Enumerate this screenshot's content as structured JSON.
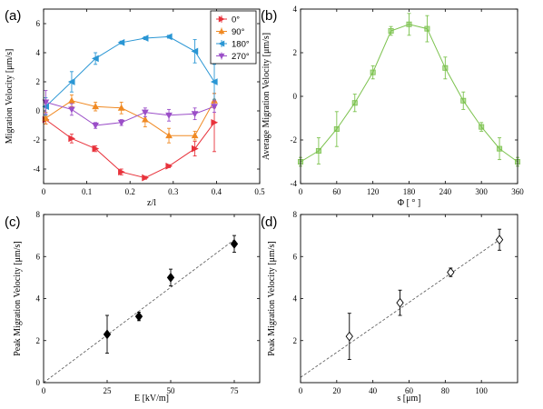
{
  "chart_data": [
    {
      "panel_label": "(a)",
      "type": "line",
      "xlabel": "z/l",
      "ylabel": "Migration Velocity [μm/s]",
      "xlim": [
        0,
        0.5
      ],
      "ylim": [
        -5,
        7
      ],
      "xticks": [
        0,
        0.1,
        0.2,
        0.3,
        0.4,
        0.5
      ],
      "xtick_labels": [
        "0",
        "0.1",
        "0.2",
        "0.3",
        "0.4",
        "0.5"
      ],
      "yticks": [
        -4,
        -2,
        0,
        2,
        4,
        6
      ],
      "ytick_labels": [
        "-4",
        "-2",
        "0",
        "2",
        "4",
        "6"
      ],
      "legend_position": "top-right",
      "series": [
        {
          "name": "0°",
          "color": "#e8333c",
          "marker": "triangle-right",
          "x": [
            0.005,
            0.065,
            0.12,
            0.18,
            0.235,
            0.29,
            0.35,
            0.395
          ],
          "y": [
            -0.6,
            -1.9,
            -2.6,
            -4.2,
            -4.6,
            -3.8,
            -2.6,
            -0.8
          ],
          "err": [
            0.3,
            0.3,
            0.2,
            0.2,
            0.1,
            0.1,
            0.5,
            2.0
          ]
        },
        {
          "name": "90°",
          "color": "#f08a24",
          "marker": "triangle-up",
          "x": [
            0.005,
            0.065,
            0.12,
            0.18,
            0.235,
            0.29,
            0.35,
            0.395
          ],
          "y": [
            -0.5,
            0.7,
            0.3,
            0.2,
            -0.6,
            -1.7,
            -1.7,
            0.7
          ],
          "err": [
            0.4,
            0.4,
            0.3,
            0.4,
            0.5,
            0.5,
            0.3,
            0.5
          ]
        },
        {
          "name": "180°",
          "color": "#2a96d4",
          "marker": "triangle-left",
          "x": [
            0.005,
            0.065,
            0.12,
            0.18,
            0.235,
            0.29,
            0.35,
            0.395
          ],
          "y": [
            0.3,
            2.0,
            3.6,
            4.7,
            5.0,
            5.1,
            4.1,
            2.0
          ],
          "err": [
            0.6,
            0.7,
            0.4,
            0.1,
            0.1,
            0.1,
            0.8,
            1.2
          ]
        },
        {
          "name": "270°",
          "color": "#9b4fc8",
          "marker": "triangle-down",
          "x": [
            0.005,
            0.065,
            0.12,
            0.18,
            0.235,
            0.29,
            0.35,
            0.395
          ],
          "y": [
            0.6,
            0.1,
            -1.0,
            -0.8,
            -0.1,
            -0.3,
            -0.2,
            0.3
          ],
          "err": [
            0.8,
            0.4,
            0.2,
            0.2,
            0.3,
            0.4,
            0.4,
            0.4
          ]
        }
      ]
    },
    {
      "panel_label": "(b)",
      "type": "line",
      "xlabel": "Φ [ ° ]",
      "ylabel": "Average Migration Velocity [μm/s]",
      "xlim": [
        0,
        360
      ],
      "ylim": [
        -4,
        4
      ],
      "xticks": [
        0,
        60,
        120,
        180,
        240,
        300,
        360
      ],
      "xtick_labels": [
        "0",
        "60",
        "120",
        "180",
        "240",
        "300",
        "360"
      ],
      "yticks": [
        -4,
        -2,
        0,
        2,
        4
      ],
      "ytick_labels": [
        "-4",
        "-2",
        "0",
        "2",
        "4"
      ],
      "series": [
        {
          "color": "#7cc24e",
          "marker": "square",
          "x": [
            0,
            30,
            60,
            90,
            120,
            150,
            180,
            210,
            240,
            270,
            300,
            330,
            360
          ],
          "y": [
            -3.0,
            -2.5,
            -1.5,
            -0.3,
            1.1,
            3.0,
            3.3,
            3.1,
            1.3,
            -0.2,
            -1.4,
            -2.4,
            -3.0
          ],
          "err": [
            0.2,
            0.6,
            0.8,
            0.4,
            0.3,
            0.2,
            0.5,
            0.6,
            0.5,
            0.4,
            0.2,
            0.5,
            0.2
          ]
        }
      ]
    },
    {
      "panel_label": "(c)",
      "type": "scatter",
      "xlabel": "E [kV/m]",
      "ylabel": "Peak Migration Velocity [μm/s]",
      "xlim": [
        0,
        85
      ],
      "ylim": [
        0,
        8
      ],
      "xticks": [
        0,
        25,
        50,
        75
      ],
      "xtick_labels": [
        "0",
        "25",
        "50",
        "75"
      ],
      "yticks": [
        0,
        2,
        4,
        6,
        8
      ],
      "ytick_labels": [
        "0",
        "2",
        "4",
        "6",
        "8"
      ],
      "points": {
        "color": "#000000",
        "marker": "diamond-filled",
        "x": [
          25,
          37.5,
          50,
          75
        ],
        "y": [
          2.3,
          3.15,
          5.0,
          6.6
        ],
        "err": [
          0.9,
          0.2,
          0.4,
          0.4
        ]
      },
      "fit_line": {
        "x": [
          0,
          75
        ],
        "y": [
          0,
          6.8
        ]
      }
    },
    {
      "panel_label": "(d)",
      "type": "scatter",
      "xlabel": "s [μm]",
      "ylabel": "Peak Migration Velocity [μm/s]",
      "xlim": [
        0,
        120
      ],
      "ylim": [
        0,
        8
      ],
      "xticks": [
        0,
        20,
        40,
        60,
        80,
        100
      ],
      "xtick_labels": [
        "0",
        "20",
        "40",
        "60",
        "80",
        "100"
      ],
      "yticks": [
        2,
        4,
        6,
        8
      ],
      "ytick_labels": [
        "2",
        "4",
        "6",
        "8"
      ],
      "points": {
        "color": "#000000",
        "marker": "diamond-open",
        "x": [
          27,
          55,
          83,
          110
        ],
        "y": [
          2.2,
          3.8,
          5.25,
          6.8
        ],
        "err": [
          1.1,
          0.6,
          0.2,
          0.5
        ]
      },
      "fit_line": {
        "x": [
          0,
          110
        ],
        "y": [
          0.25,
          6.8
        ]
      }
    }
  ]
}
